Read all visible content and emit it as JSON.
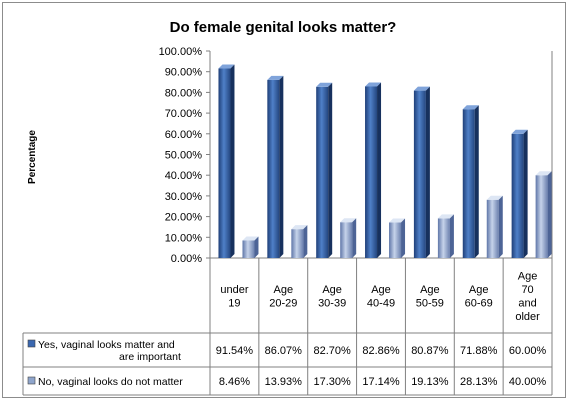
{
  "chart_data": {
    "type": "bar",
    "title": "Do female genital looks matter?",
    "ylabel": "Percentage",
    "xlabel": "",
    "ylim": [
      0,
      100
    ],
    "y_ticks": [
      "0.00%",
      "10.00%",
      "20.00%",
      "30.00%",
      "40.00%",
      "50.00%",
      "60.00%",
      "70.00%",
      "80.00%",
      "90.00%",
      "100.00%"
    ],
    "categories": [
      "under 19",
      "Age 20-29",
      "Age 30-39",
      "Age 40-49",
      "Age 50-59",
      "Age 60-69",
      "Age 70 and older"
    ],
    "category_lines": [
      [
        "under",
        "19"
      ],
      [
        "Age",
        "20-29"
      ],
      [
        "Age",
        "30-39"
      ],
      [
        "Age",
        "40-49"
      ],
      [
        "Age",
        "50-59"
      ],
      [
        "Age",
        "60-69"
      ],
      [
        "Age",
        "70",
        "and",
        "older"
      ]
    ],
    "series": [
      {
        "name": "Yes, vaginal looks matter  and are important",
        "name_lines": [
          "Yes, vaginal looks matter  and",
          "are important"
        ],
        "color": "#3a68b0",
        "values": [
          91.54,
          86.07,
          82.7,
          82.86,
          80.87,
          71.88,
          60.0
        ],
        "value_labels": [
          "91.54%",
          "86.07%",
          "82.70%",
          "82.86%",
          "80.87%",
          "71.88%",
          "60.00%"
        ]
      },
      {
        "name": "No, vaginal looks do not matter",
        "name_lines": [
          "No, vaginal looks do not matter"
        ],
        "color": "#8fa5cc",
        "values": [
          8.46,
          13.93,
          17.3,
          17.14,
          19.13,
          28.13,
          40.0
        ],
        "value_labels": [
          "8.46%",
          "13.93%",
          "17.30%",
          "17.14%",
          "19.13%",
          "28.13%",
          "40.00%"
        ]
      }
    ],
    "grid": false,
    "legend": "data-table"
  }
}
